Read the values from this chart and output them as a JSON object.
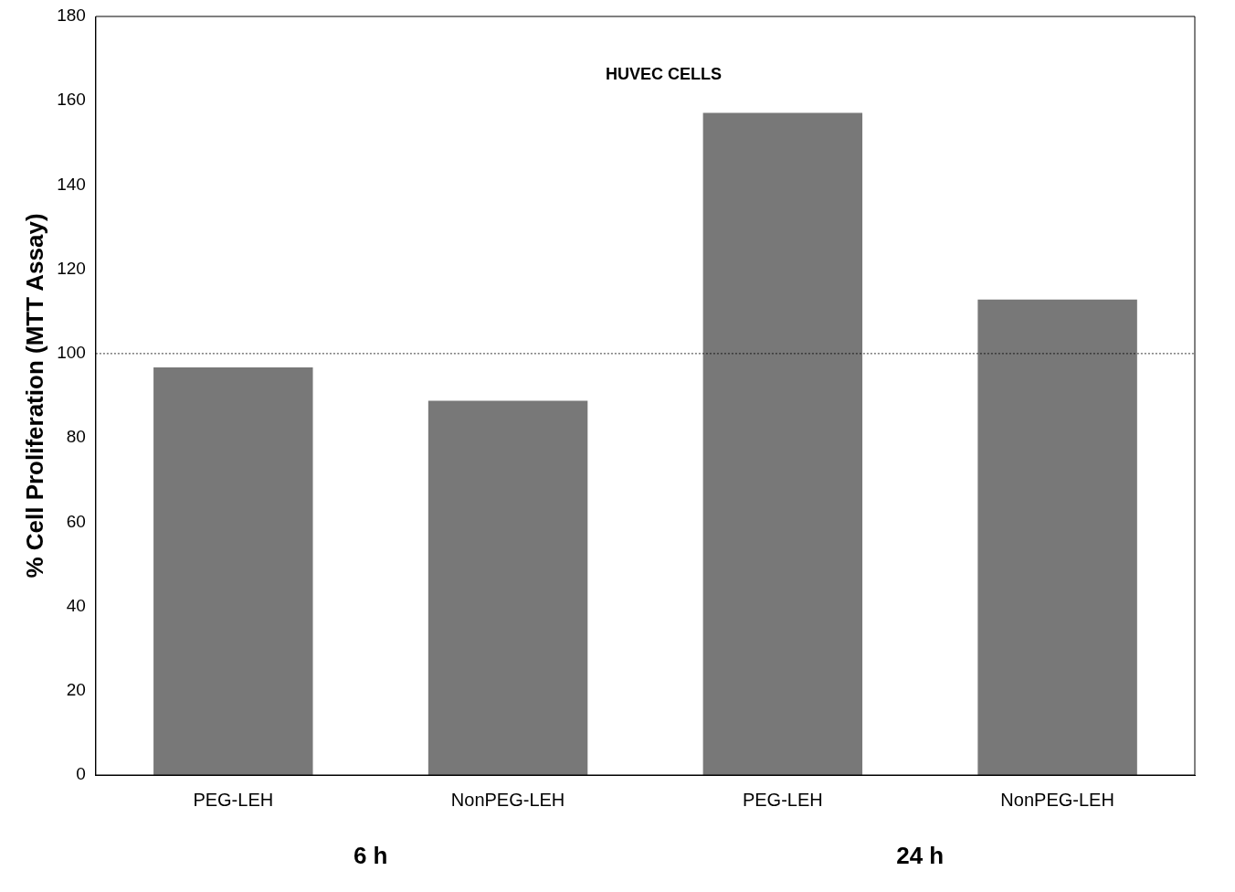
{
  "chart_data": {
    "type": "bar",
    "title": "HUVEC CELLS",
    "ylabel": "% Cell Proliferation (MTT Assay)",
    "categories": [
      "PEG-LEH",
      "NonPEG-LEH",
      "PEG-LEH",
      "NonPEG-LEH"
    ],
    "values": [
      96.7,
      88.8,
      157.1,
      112.8
    ],
    "color": "#787878",
    "ylim": [
      0,
      180
    ],
    "yticks": [
      0,
      20,
      40,
      60,
      80,
      100,
      120,
      140,
      160,
      180
    ],
    "grid": false,
    "legend": false,
    "ref_lines": [
      {
        "axis": "y",
        "value": 100,
        "color": "#000000",
        "line_style": "dotted"
      }
    ],
    "annotations": [
      "6 h",
      "24 h"
    ]
  }
}
